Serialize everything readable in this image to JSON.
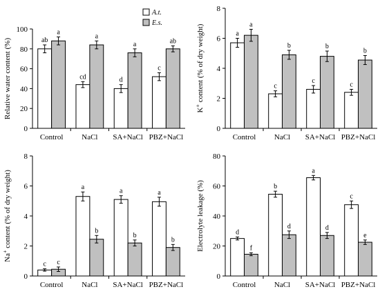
{
  "colors": {
    "at_fill": "#ffffff",
    "es_fill": "#c0c0c0",
    "stroke": "#000000"
  },
  "legend": {
    "entries": [
      {
        "label": "A.t.",
        "color": "#ffffff"
      },
      {
        "label": "E.s.",
        "color": "#c0c0c0"
      }
    ],
    "placement": "top-center"
  },
  "chart_data": [
    {
      "type": "bar",
      "id": "rwc",
      "ylabel": "Relative water content (%)",
      "ylim": [
        0,
        100
      ],
      "yticks": [
        0,
        20,
        40,
        60,
        80,
        100
      ],
      "categories": [
        "Control",
        "NaCl",
        "SA+NaCl",
        "PBZ+NaCl"
      ],
      "series": [
        {
          "name": "A.t.",
          "values": [
            80,
            44,
            40,
            52
          ],
          "errors": [
            4,
            3,
            4,
            4
          ],
          "letters": [
            "ab",
            "cd",
            "d",
            "c"
          ]
        },
        {
          "name": "E.s.",
          "values": [
            88,
            84,
            76,
            80
          ],
          "errors": [
            4,
            4,
            4,
            3
          ],
          "letters": [
            "a",
            "a",
            "a",
            "ab"
          ]
        }
      ]
    },
    {
      "type": "bar",
      "id": "k",
      "ylabel": "K+ content (% of dry weight)",
      "ylabel_parts": [
        "K",
        "+",
        " content (% of dry weight)"
      ],
      "ylim": [
        0,
        8
      ],
      "yticks": [
        0,
        2,
        4,
        6,
        8
      ],
      "categories": [
        "Control",
        "NaCl",
        "SA+NaCl",
        "PBZ+NaCl"
      ],
      "series": [
        {
          "name": "A.t.",
          "values": [
            5.7,
            2.3,
            2.6,
            2.4
          ],
          "errors": [
            0.3,
            0.2,
            0.25,
            0.2
          ],
          "letters": [
            "a",
            "c",
            "c",
            "c"
          ]
        },
        {
          "name": "E.s.",
          "values": [
            6.2,
            4.9,
            4.8,
            4.55
          ],
          "errors": [
            0.4,
            0.3,
            0.35,
            0.3
          ],
          "letters": [
            "a",
            "b",
            "b",
            "b"
          ]
        }
      ]
    },
    {
      "type": "bar",
      "id": "na",
      "ylabel": "Na+ content (% of dry weight)",
      "ylabel_parts": [
        "Na",
        "+",
        " content (% of dry weight)"
      ],
      "ylim": [
        0,
        8
      ],
      "yticks": [
        0,
        2,
        4,
        6,
        8
      ],
      "categories": [
        "Control",
        "NaCl",
        "SA+NaCl",
        "PBZ+NaCl"
      ],
      "series": [
        {
          "name": "A.t.",
          "values": [
            0.4,
            5.3,
            5.1,
            4.95
          ],
          "errors": [
            0.08,
            0.3,
            0.25,
            0.3
          ],
          "letters": [
            "c",
            "a",
            "a",
            "a"
          ]
        },
        {
          "name": "E.s.",
          "values": [
            0.45,
            2.45,
            2.2,
            1.9
          ],
          "errors": [
            0.15,
            0.25,
            0.2,
            0.2
          ],
          "letters": [
            "c",
            "b",
            "b",
            "b"
          ]
        }
      ]
    },
    {
      "type": "bar",
      "id": "el",
      "ylabel": "Electrolyte leakage (%)",
      "ylim": [
        0,
        80
      ],
      "yticks": [
        0,
        20,
        40,
        60,
        80
      ],
      "categories": [
        "Control",
        "NaCl",
        "SA+NaCl",
        "PBZ+NaCl"
      ],
      "series": [
        {
          "name": "A.t.",
          "values": [
            25,
            54.5,
            65.5,
            47.5
          ],
          "errors": [
            1,
            2,
            1.5,
            2.5
          ],
          "letters": [
            "d",
            "b",
            "a",
            "c"
          ]
        },
        {
          "name": "E.s.",
          "values": [
            14.5,
            27.5,
            27,
            22.5
          ],
          "errors": [
            1,
            2.5,
            2,
            1.5
          ],
          "letters": [
            "f",
            "d",
            "d",
            "e"
          ]
        }
      ]
    }
  ]
}
